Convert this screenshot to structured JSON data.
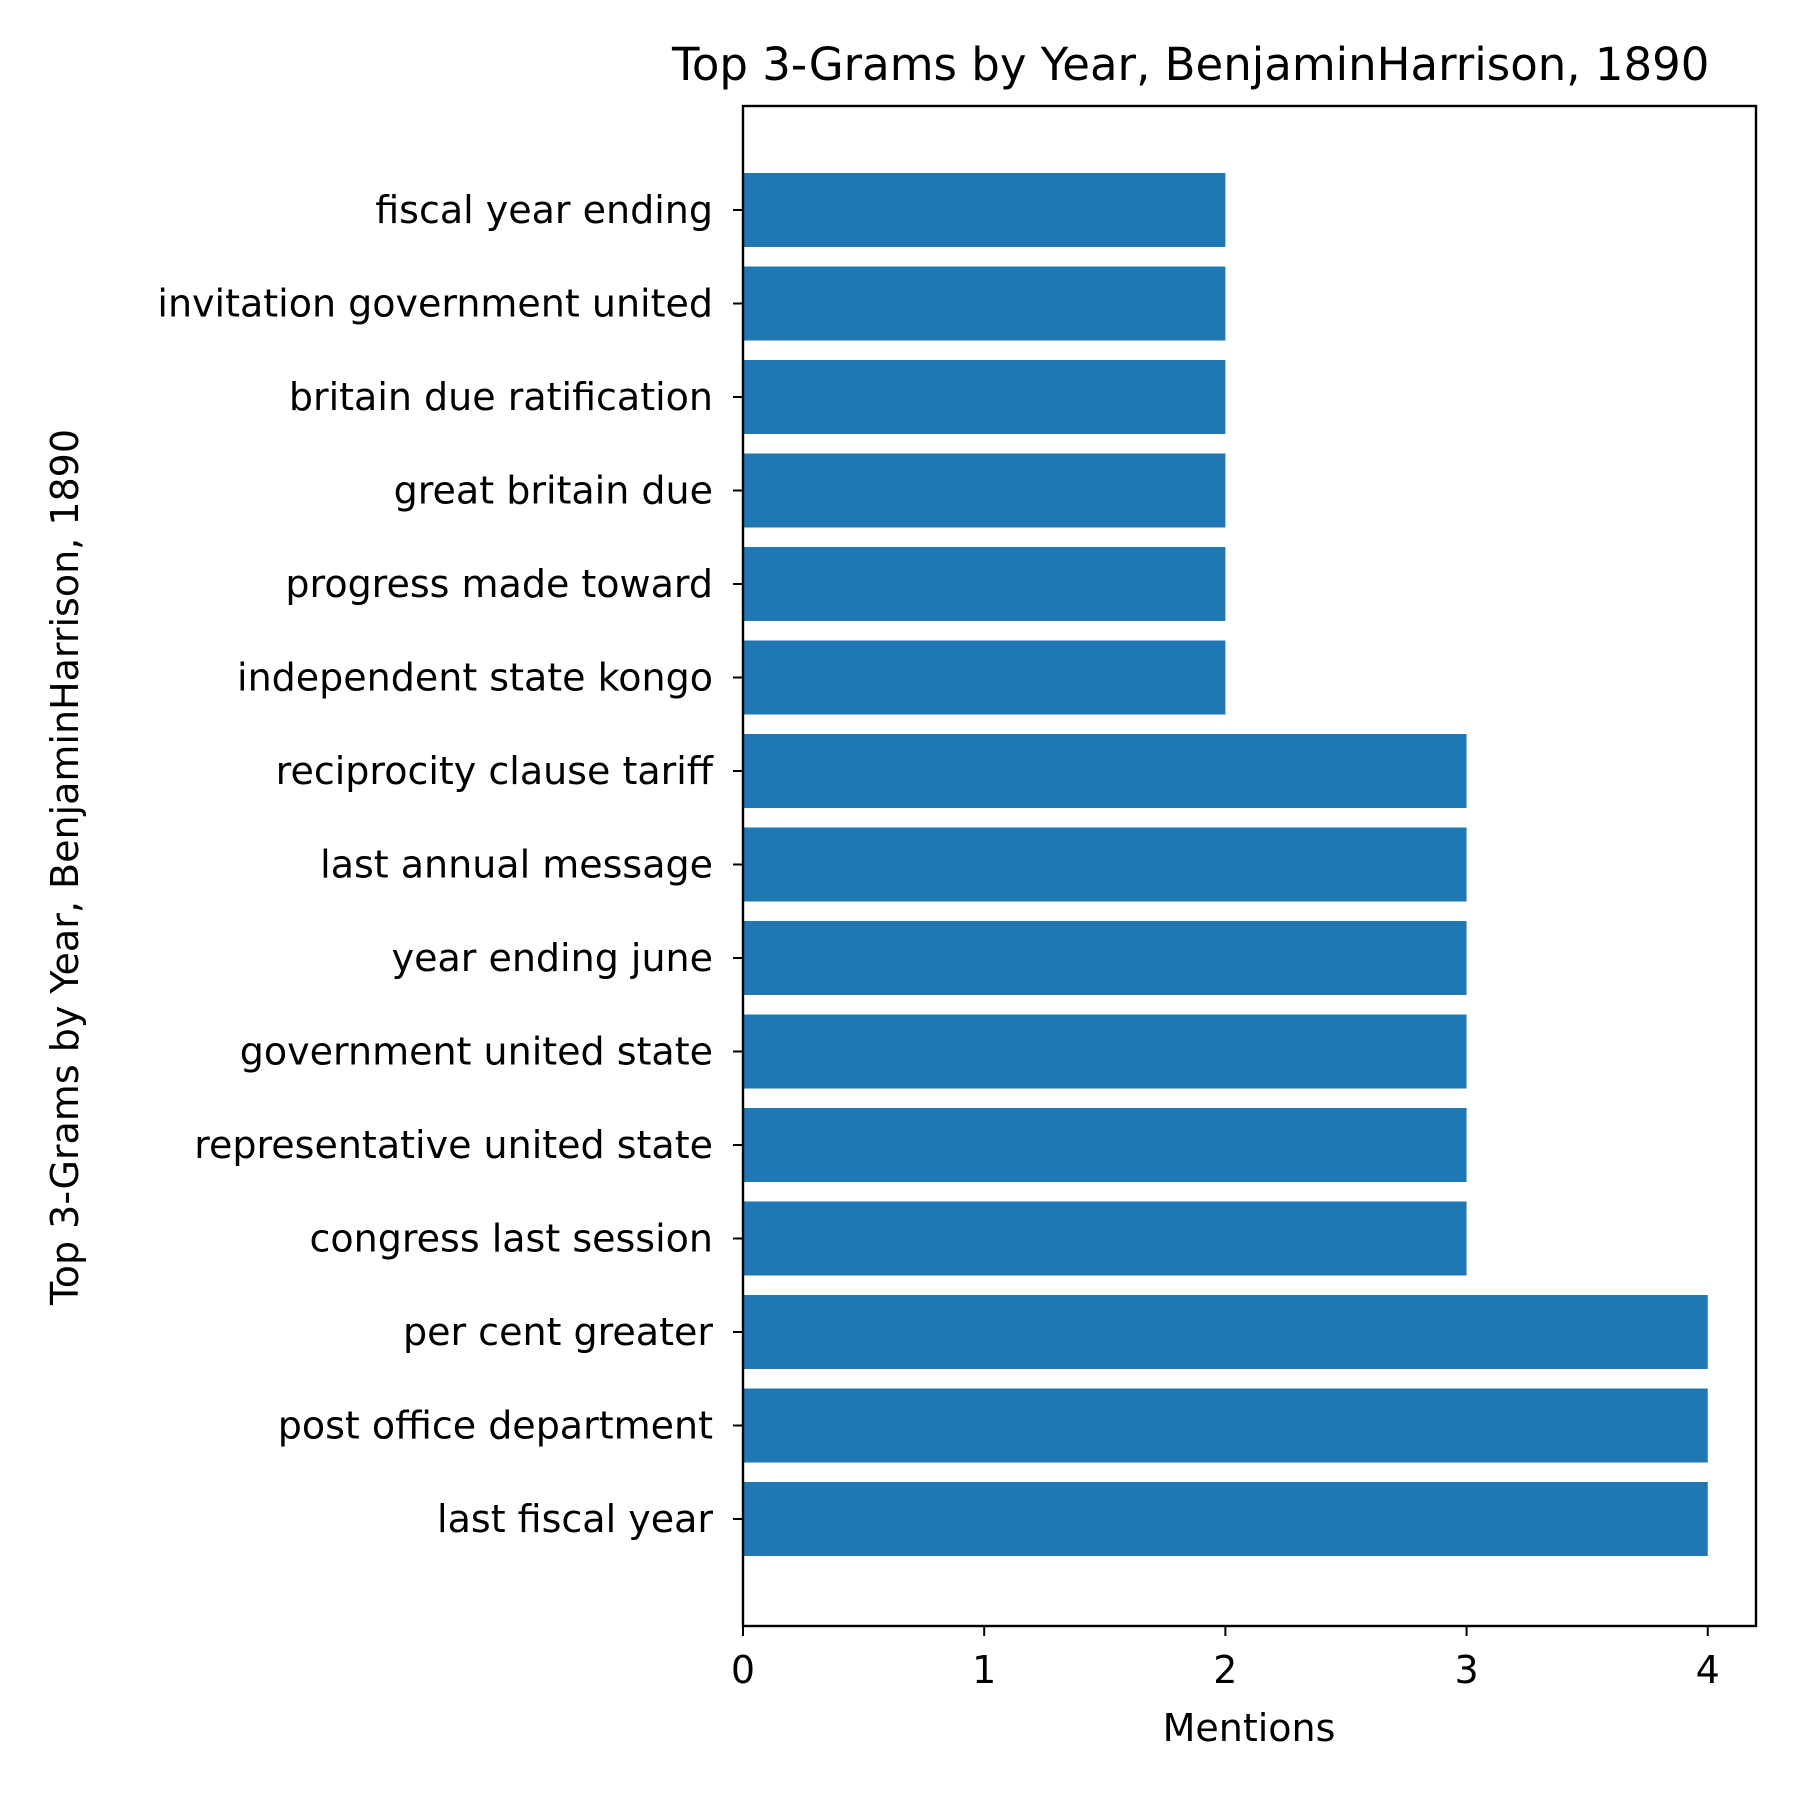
{
  "chart_data": {
    "type": "bar",
    "orientation": "horizontal",
    "title": "Top 3-Grams by Year, BenjaminHarrison, 1890",
    "xlabel": "Mentions",
    "ylabel": "Top 3-Grams by Year, BenjaminHarrison, 1890",
    "categories": [
      "last fiscal year",
      "post office department",
      "per cent greater",
      "congress last session",
      "representative united state",
      "government united state",
      "year ending june",
      "last annual message",
      "reciprocity clause tariff",
      "independent state kongo",
      "progress made toward",
      "great britain due",
      "britain due ratification",
      "invitation government united",
      "fiscal year ending"
    ],
    "values": [
      4,
      4,
      4,
      3,
      3,
      3,
      3,
      3,
      3,
      2,
      2,
      2,
      2,
      2,
      2
    ],
    "xlim": [
      0,
      4.2
    ],
    "xticks": [
      "0",
      "1",
      "2",
      "3",
      "4"
    ],
    "grid": false,
    "legend": "none",
    "bar_color": "#1f77b4"
  }
}
